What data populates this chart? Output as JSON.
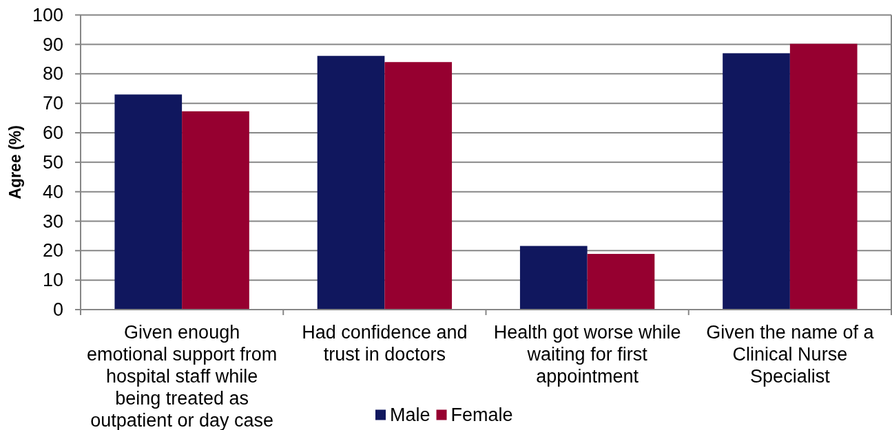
{
  "chart_data": {
    "type": "bar",
    "ylabel": "Agree (%)",
    "categories": [
      "Given enough emotional support from hospital staff while being treated as outpatient or day case",
      "Had confidence and trust in doctors",
      "Health got worse while waiting for first appointment",
      "Given the name of a Clinical Nurse Specialist"
    ],
    "series": [
      {
        "name": "Male",
        "color": "#10175e",
        "values": [
          73.0,
          86.1,
          21.6,
          87.0
        ]
      },
      {
        "name": "Female",
        "color": "#960030",
        "values": [
          67.3,
          84.0,
          18.9,
          90.2
        ]
      }
    ],
    "ylim": [
      0,
      100
    ],
    "yticks": [
      0,
      10,
      20,
      30,
      40,
      50,
      60,
      70,
      80,
      90,
      100
    ],
    "grid": "y",
    "legend": "bottom"
  }
}
